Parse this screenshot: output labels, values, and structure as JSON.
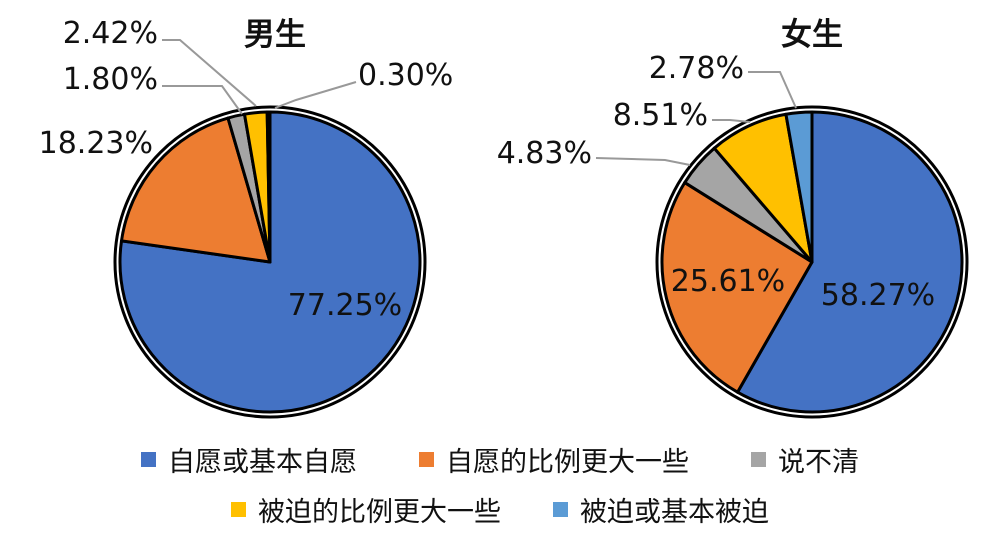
{
  "chart_data": {
    "type": "pie",
    "legend_position": "bottom",
    "categories": [
      "自愿或基本自愿",
      "自愿的比例更大一些",
      "说不清",
      "被迫的比例更大一些",
      "被迫或基本被迫"
    ],
    "colors": [
      "#4472C4",
      "#ED7D31",
      "#A5A5A5",
      "#FFC000",
      "#5B9BD5"
    ],
    "charts": [
      {
        "title": "男生",
        "values": [
          77.25,
          18.23,
          1.8,
          2.42,
          0.3
        ],
        "labels": [
          "77.25%",
          "18.23%",
          "1.80%",
          "2.42%",
          "0.30%"
        ]
      },
      {
        "title": "女生",
        "values": [
          58.27,
          25.61,
          4.83,
          8.51,
          2.78
        ],
        "labels": [
          "58.27%",
          "25.61%",
          "4.83%",
          "8.51%",
          "2.78%"
        ]
      }
    ]
  }
}
